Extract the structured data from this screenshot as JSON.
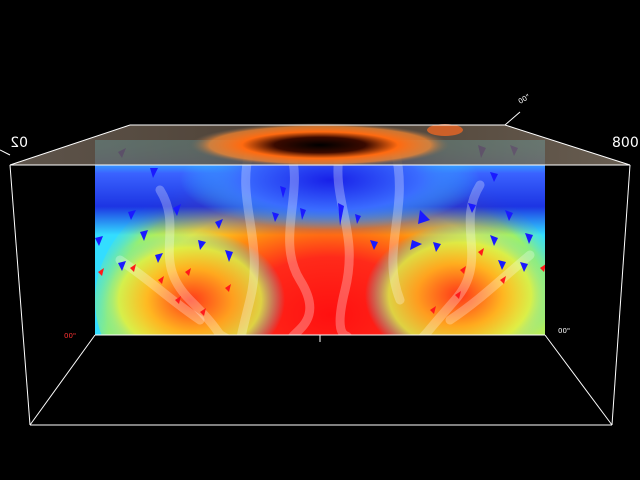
{
  "labels": {
    "left_corner": "02",
    "right_corner": "800",
    "left_floor_tick": "00\"",
    "right_floor_tick": "00\"",
    "top_tick": "00\""
  },
  "colors": {
    "background": "#000000",
    "box_edges": "#ffffff",
    "slice_low": "#33ddff",
    "slice_mid": "#ffff33",
    "slice_high": "#ff2222",
    "slice_cold": "#2233dd",
    "arrows_up": "#1a1aff",
    "arrows_down": "#ff1a1a"
  },
  "icons": {
    "up_arrow": "blue-triangle-icon",
    "down_arrow": "red-triangle-icon"
  }
}
